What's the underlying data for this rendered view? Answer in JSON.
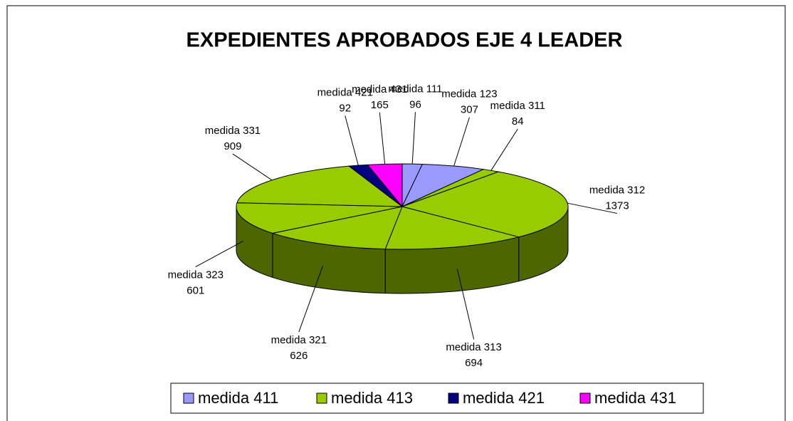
{
  "chart_data": {
    "type": "pie3d",
    "title": "EXPEDIENTES APROBADOS EJE 4 LEADER",
    "slices": [
      {
        "name": "medida 111",
        "value": 96,
        "color": "#9999ff"
      },
      {
        "name": "medida 123",
        "value": 307,
        "color": "#9999ff"
      },
      {
        "name": "medida 311",
        "value": 84,
        "color": "#99cc00"
      },
      {
        "name": "medida 312",
        "value": 1373,
        "color": "#99cc00"
      },
      {
        "name": "medida 313",
        "value": 694,
        "color": "#99cc00"
      },
      {
        "name": "medida 321",
        "value": 626,
        "color": "#99cc00"
      },
      {
        "name": "medida 323",
        "value": 601,
        "color": "#99cc00"
      },
      {
        "name": "medida 331",
        "value": 909,
        "color": "#99cc00"
      },
      {
        "name": "medida 421",
        "value": 92,
        "color": "#000080"
      },
      {
        "name": "medida 431",
        "value": 165,
        "color": "#ff00ff"
      }
    ],
    "legend": [
      {
        "name": "medida 411",
        "color": "#9999ff"
      },
      {
        "name": "medida 413",
        "color": "#99cc00"
      },
      {
        "name": "medida 421",
        "color": "#000080"
      },
      {
        "name": "medida 431",
        "color": "#ff00ff"
      }
    ]
  }
}
